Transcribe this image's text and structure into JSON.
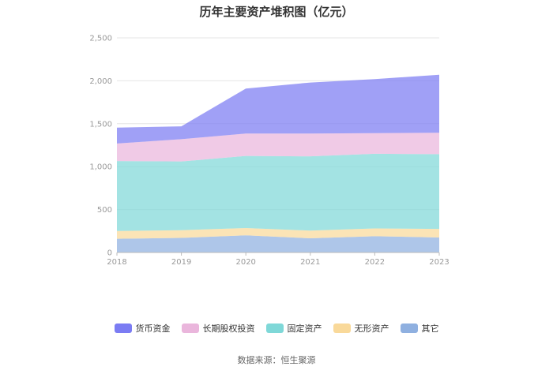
{
  "title": "历年主要资产堆积图（亿元）",
  "source_label": "数据来源：恒生聚源",
  "chart_data": {
    "type": "area",
    "stacked": true,
    "title": "历年主要资产堆积图（亿元）",
    "xlabel": "",
    "ylabel": "",
    "categories": [
      "2018",
      "2019",
      "2020",
      "2021",
      "2022",
      "2023"
    ],
    "ylim": [
      0,
      2500
    ],
    "yticks": [
      0,
      500,
      1000,
      1500,
      2000,
      2500
    ],
    "ytick_labels": [
      "0",
      "500",
      "1,000",
      "1,500",
      "2,000",
      "2,500"
    ],
    "grid": true,
    "legend_position": "bottom",
    "series": [
      {
        "name": "其它",
        "color": "#8fb0e0",
        "values": [
          160,
          170,
          200,
          165,
          190,
          175
        ]
      },
      {
        "name": "无形资产",
        "color": "#f9d99a",
        "values": [
          90,
          90,
          85,
          90,
          90,
          100
        ]
      },
      {
        "name": "固定资产",
        "color": "#7fd8d8",
        "values": [
          815,
          800,
          840,
          865,
          870,
          870
        ]
      },
      {
        "name": "长期股权投资",
        "color": "#eab6dc",
        "values": [
          205,
          260,
          260,
          265,
          240,
          250
        ]
      },
      {
        "name": "货币资金",
        "color": "#7b7cf3",
        "values": [
          185,
          150,
          525,
          595,
          630,
          675
        ]
      }
    ],
    "legend_order": [
      "货币资金",
      "长期股权投资",
      "固定资产",
      "无形资产",
      "其它"
    ]
  }
}
